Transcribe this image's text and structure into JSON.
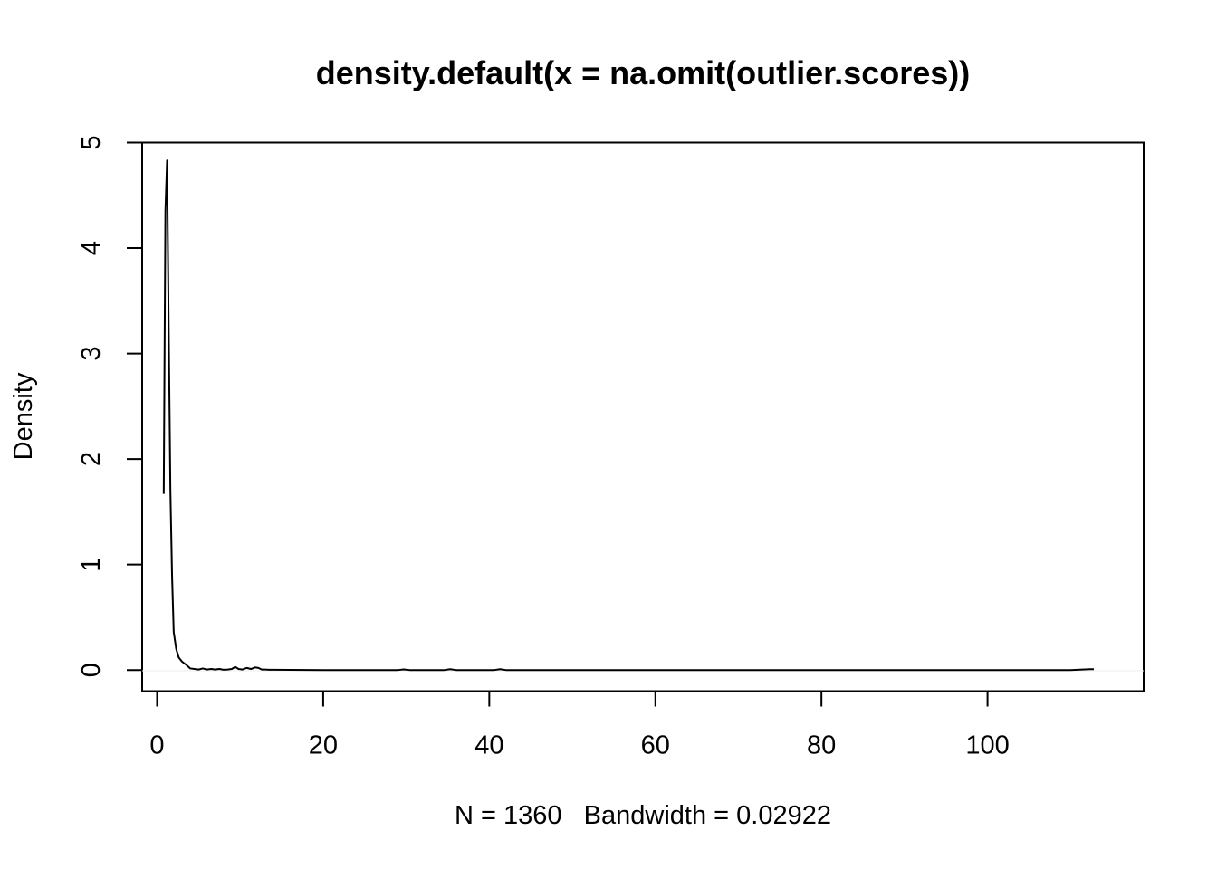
{
  "chart_data": {
    "type": "line",
    "title": "density.default(x = na.omit(outlier.scores))",
    "xlabel": "N = 1360   Bandwidth = 0.02922",
    "ylabel": "Density",
    "xlim": [
      -1.8,
      118.8
    ],
    "ylim": [
      -0.2,
      5.0
    ],
    "x_ticks": [
      0,
      20,
      40,
      60,
      80,
      100
    ],
    "y_ticks": [
      0,
      1,
      2,
      3,
      4,
      5
    ],
    "x_tick_labels": [
      "0",
      "20",
      "40",
      "60",
      "80",
      "100"
    ],
    "y_tick_labels": [
      "0",
      "1",
      "2",
      "3",
      "4",
      "5"
    ],
    "grid": false,
    "legend": "none",
    "line_color": "#000000",
    "series": [
      {
        "x": [
          0.8,
          1.0,
          1.2,
          1.4,
          1.6,
          1.8,
          2.0,
          2.3,
          2.6,
          3.0,
          3.5,
          4.0,
          4.5,
          5.0,
          5.5,
          6.0,
          6.5,
          7.0,
          7.5,
          8.0,
          8.5,
          9.0,
          9.4,
          9.8,
          10.3,
          10.8,
          11.3,
          11.8,
          12.2,
          12.6,
          13.0,
          13.5,
          14.0,
          20.0,
          29.0,
          29.7,
          30.4,
          34.6,
          35.3,
          36.0,
          40.6,
          41.3,
          42.0,
          60.0,
          80.0,
          100.0,
          110.0,
          112.3,
          112.8
        ],
        "y": [
          1.67,
          4.35,
          4.83,
          3.2,
          1.7,
          0.9,
          0.36,
          0.2,
          0.12,
          0.08,
          0.05,
          0.015,
          0.01,
          0.005,
          0.015,
          0.005,
          0.01,
          0.005,
          0.01,
          0.003,
          0.005,
          0.01,
          0.03,
          0.01,
          0.005,
          0.02,
          0.01,
          0.025,
          0.02,
          0.005,
          0.005,
          0.003,
          0.003,
          0.0,
          0.0,
          0.006,
          0.0,
          0.0,
          0.008,
          0.0,
          0.0,
          0.008,
          0.0,
          0.0,
          0.0,
          0.0,
          0.0,
          0.008,
          0.008
        ]
      }
    ]
  }
}
